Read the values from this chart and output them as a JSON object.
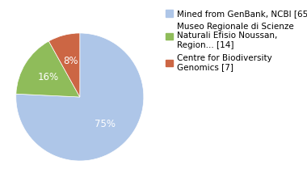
{
  "labels": [
    "Mined from GenBank, NCBI [65]",
    "Museo Regionale di Scienze\nNaturali Efisio Noussan,\nRegion... [14]",
    "Centre for Biodiversity\nGenomics [7]"
  ],
  "values": [
    75,
    16,
    8
  ],
  "colors": [
    "#aec6e8",
    "#8fbc5a",
    "#cc6644"
  ],
  "text_labels": [
    "75%",
    "16%",
    "8%"
  ],
  "background_color": "#ffffff",
  "legend_fontsize": 7.5,
  "autopct_fontsize": 8.5
}
